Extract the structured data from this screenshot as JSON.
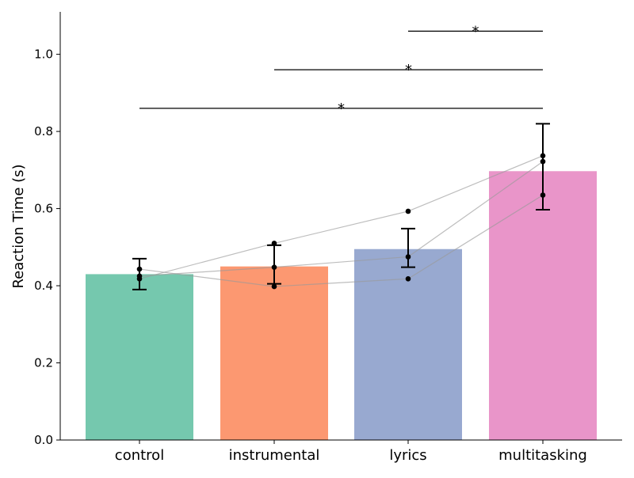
{
  "chart_data": {
    "type": "bar",
    "title": "",
    "xlabel": "",
    "ylabel": "Reaction Time (s)",
    "categories": [
      "control",
      "instrumental",
      "lyrics",
      "multitasking"
    ],
    "values": [
      0.43,
      0.45,
      0.495,
      0.697
    ],
    "error_low": [
      0.39,
      0.405,
      0.448,
      0.597
    ],
    "error_high": [
      0.47,
      0.505,
      0.548,
      0.82
    ],
    "bar_colors": [
      "#66c2a5",
      "#fc8d62",
      "#8da0cb",
      "#e78ac3"
    ],
    "bar_alpha": 0.9,
    "ylim": [
      0,
      1.11
    ],
    "yticks": [
      0.0,
      0.2,
      0.4,
      0.6,
      0.8,
      1.0
    ],
    "ytick_labels": [
      "0.0",
      "0.2",
      "0.4",
      "0.6",
      "0.8",
      "1.0"
    ],
    "subjects": [
      [
        0.443,
        0.398,
        0.418,
        0.635
      ],
      [
        0.425,
        0.448,
        0.475,
        0.722
      ],
      [
        0.418,
        0.51,
        0.593,
        0.737
      ]
    ],
    "significance": [
      {
        "from": 2,
        "to": 3,
        "y": 1.06,
        "label": "*"
      },
      {
        "from": 1,
        "to": 3,
        "y": 0.96,
        "label": "*"
      },
      {
        "from": 0,
        "to": 3,
        "y": 0.86,
        "label": "*"
      }
    ],
    "grid": false,
    "legend": "none"
  }
}
